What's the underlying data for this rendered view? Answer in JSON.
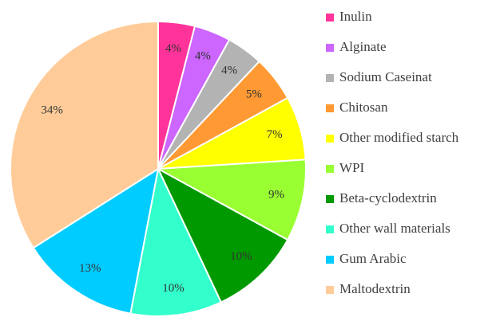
{
  "chart_data": {
    "type": "pie",
    "categories": [
      "Inulin",
      "Alginate",
      "Sodium Caseinat",
      "Chitosan",
      "Other modified starch",
      "WPI",
      "Beta-cyclodextrin",
      "Other wall materials",
      "Gum Arabic",
      "Maltodextrin"
    ],
    "values": [
      4,
      4,
      4,
      5,
      7,
      9,
      10,
      10,
      13,
      34
    ],
    "value_labels": [
      "4%",
      "4%",
      "4%",
      "5%",
      "7%",
      "9%",
      "10%",
      "10%",
      "13%",
      "34%"
    ],
    "colors": [
      "#ff3399",
      "#cc66ff",
      "#b3b3b3",
      "#ff9933",
      "#ffff00",
      "#99ff33",
      "#009900",
      "#33ffcc",
      "#00ccff",
      "#ffcc99"
    ],
    "legend": "right"
  }
}
